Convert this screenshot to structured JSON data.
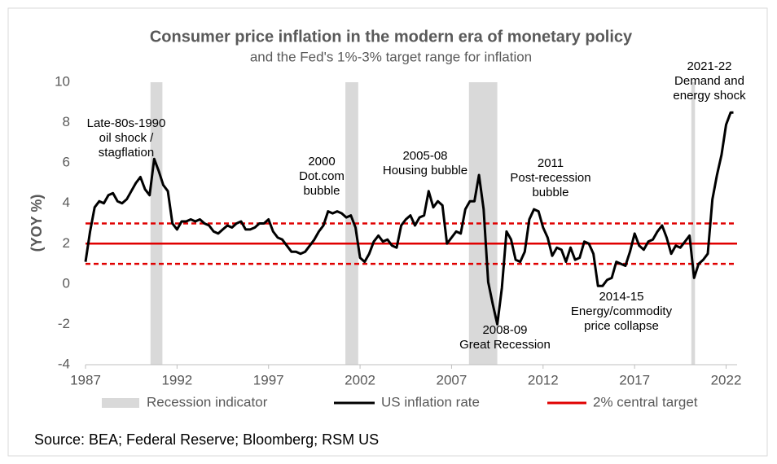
{
  "chart_data": {
    "type": "line",
    "title": "Consumer price inflation in the modern era of monetary policy",
    "subtitle": "and the Fed's 1%-3% target range for inflation",
    "y_label": "(YOY %)",
    "source": "Source: BEA; Federal Reserve;  Bloomberg; RSM US",
    "xlim": [
      1987,
      2022.6
    ],
    "xticks": [
      1987,
      1992,
      1997,
      2002,
      2007,
      2012,
      2017,
      2022
    ],
    "ylim": [
      -4,
      10
    ],
    "yticks": [
      -4,
      -2,
      0,
      2,
      4,
      6,
      8,
      10
    ],
    "x": [
      1987.0,
      1987.25,
      1987.5,
      1987.75,
      1988.0,
      1988.25,
      1988.5,
      1988.75,
      1989.0,
      1989.25,
      1989.5,
      1989.75,
      1990.0,
      1990.25,
      1990.5,
      1990.75,
      1991.0,
      1991.25,
      1991.5,
      1991.75,
      1992.0,
      1992.25,
      1992.5,
      1992.75,
      1993.0,
      1993.25,
      1993.5,
      1993.75,
      1994.0,
      1994.25,
      1994.5,
      1994.75,
      1995.0,
      1995.25,
      1995.5,
      1995.75,
      1996.0,
      1996.25,
      1996.5,
      1996.75,
      1997.0,
      1997.25,
      1997.5,
      1997.75,
      1998.0,
      1998.25,
      1998.5,
      1998.75,
      1999.0,
      1999.25,
      1999.5,
      1999.75,
      2000.0,
      2000.25,
      2000.5,
      2000.75,
      2001.0,
      2001.25,
      2001.5,
      2001.75,
      2002.0,
      2002.25,
      2002.5,
      2002.75,
      2003.0,
      2003.25,
      2003.5,
      2003.75,
      2004.0,
      2004.25,
      2004.5,
      2004.75,
      2005.0,
      2005.25,
      2005.5,
      2005.75,
      2006.0,
      2006.25,
      2006.5,
      2006.75,
      2007.0,
      2007.25,
      2007.5,
      2007.75,
      2008.0,
      2008.25,
      2008.5,
      2008.75,
      2009.0,
      2009.25,
      2009.5,
      2009.75,
      2010.0,
      2010.25,
      2010.5,
      2010.75,
      2011.0,
      2011.25,
      2011.5,
      2011.75,
      2012.0,
      2012.25,
      2012.5,
      2012.75,
      2013.0,
      2013.25,
      2013.5,
      2013.75,
      2014.0,
      2014.25,
      2014.5,
      2014.75,
      2015.0,
      2015.25,
      2015.5,
      2015.75,
      2016.0,
      2016.25,
      2016.5,
      2016.75,
      2017.0,
      2017.25,
      2017.5,
      2017.75,
      2018.0,
      2018.25,
      2018.5,
      2018.75,
      2019.0,
      2019.25,
      2019.5,
      2019.75,
      2020.0,
      2020.25,
      2020.5,
      2020.75,
      2021.0,
      2021.25,
      2021.5,
      2021.75,
      2022.0,
      2022.25,
      2022.4
    ],
    "series": [
      {
        "name": "US inflation rate",
        "color": "#000000",
        "values": [
          1.1,
          2.6,
          3.8,
          4.1,
          4.0,
          4.4,
          4.5,
          4.1,
          4.0,
          4.2,
          4.6,
          5.0,
          5.3,
          4.7,
          4.4,
          6.2,
          5.6,
          4.9,
          4.6,
          3.0,
          2.7,
          3.1,
          3.1,
          3.2,
          3.1,
          3.2,
          3.0,
          2.9,
          2.6,
          2.5,
          2.7,
          2.9,
          2.8,
          3.0,
          3.1,
          2.7,
          2.7,
          2.8,
          3.0,
          3.0,
          3.2,
          2.6,
          2.3,
          2.2,
          1.9,
          1.6,
          1.6,
          1.5,
          1.6,
          1.9,
          2.2,
          2.6,
          2.9,
          3.6,
          3.5,
          3.6,
          3.5,
          3.3,
          3.4,
          2.8,
          1.3,
          1.1,
          1.5,
          2.1,
          2.4,
          2.1,
          2.2,
          1.9,
          1.8,
          2.9,
          3.2,
          3.4,
          2.9,
          3.3,
          3.4,
          4.6,
          3.8,
          4.1,
          3.9,
          2.0,
          2.3,
          2.6,
          2.5,
          3.7,
          4.1,
          4.1,
          5.4,
          3.7,
          0.1,
          -1.0,
          -2.0,
          -0.2,
          2.6,
          2.2,
          1.2,
          1.1,
          1.6,
          3.2,
          3.7,
          3.6,
          2.8,
          2.3,
          1.4,
          1.8,
          1.7,
          1.1,
          1.8,
          1.2,
          1.3,
          2.1,
          2.0,
          1.5,
          -0.1,
          -0.1,
          0.2,
          0.3,
          1.1,
          1.0,
          0.9,
          1.6,
          2.5,
          1.9,
          1.7,
          2.1,
          2.2,
          2.6,
          2.9,
          2.3,
          1.5,
          1.9,
          1.8,
          2.1,
          2.4,
          0.3,
          1.0,
          1.2,
          1.5,
          4.2,
          5.4,
          6.4,
          7.9,
          8.5,
          8.5
        ]
      }
    ],
    "recessions": {
      "name": "Recession indicator",
      "color": "#d9d9d9",
      "periods": [
        [
          1990.55,
          1991.2
        ],
        [
          2001.2,
          2001.9
        ],
        [
          2007.95,
          2009.5
        ],
        [
          2020.1,
          2020.3
        ]
      ]
    },
    "target": {
      "name": "2% central target",
      "color": "#e00000",
      "value": 2,
      "band": [
        1,
        3
      ]
    },
    "annotations": [
      [
        "Late-80s-1990",
        "oil shock /",
        "stagflation"
      ],
      [
        "2000",
        "Dot.com",
        "bubble"
      ],
      [
        "2005-08",
        "Housing bubble"
      ],
      [
        "2011",
        "Post-recession",
        "bubble"
      ],
      [
        "2014-15",
        "Energy/commodity",
        "price collapse"
      ],
      [
        "2008-09",
        "Great Recession"
      ],
      [
        "2021-22",
        "Demand and",
        "energy shock"
      ]
    ]
  }
}
